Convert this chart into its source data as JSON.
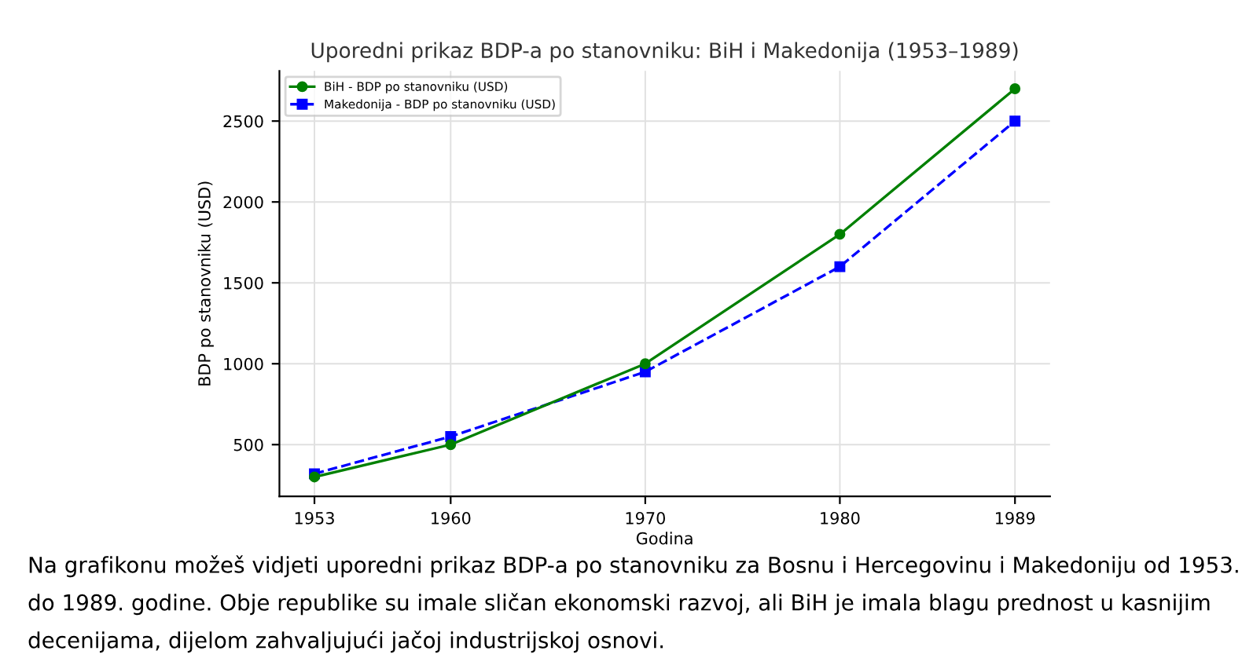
{
  "chart_data": {
    "type": "line",
    "title": "Uporedni prikaz BDP-a po stanovniku: BiH i Makedonija (1953–1989)",
    "xlabel": "Godina",
    "ylabel": "BDP po stanovniku (USD)",
    "x": [
      1953,
      1960,
      1970,
      1980,
      1989
    ],
    "series": [
      {
        "name": "BiH - BDP po stanovniku (USD)",
        "color": "#008000",
        "values": [
          300,
          500,
          1000,
          1800,
          2700
        ],
        "marker": "circle",
        "line_style": "solid"
      },
      {
        "name": "Makedonija - BDP po stanovniku (USD)",
        "color": "#0000ff",
        "values": [
          320,
          550,
          950,
          1600,
          2500
        ],
        "marker": "square",
        "line_style": "dashed"
      }
    ],
    "xlim": [
      1951.2,
      1990.8
    ],
    "ylim": [
      180,
      2810
    ],
    "xticks": [
      1953,
      1960,
      1970,
      1980,
      1989
    ],
    "yticks": [
      500,
      1000,
      1500,
      2000,
      2500
    ],
    "grid": true,
    "legend": "top left",
    "annotations": [
      "Na grafikonu možeš vidjeti uporedni prikaz BDP-a po stanovniku za Bosnu i Hercegovinu i Makedoniju od 1953. do 1989. godine. Obje republike su imale sličan ekonomski razvoj, ali BiH je imala blagu prednost u kasnijim decenijama, dijelom zahvaljujući jačoj industrijskoj osnovi."
    ]
  }
}
